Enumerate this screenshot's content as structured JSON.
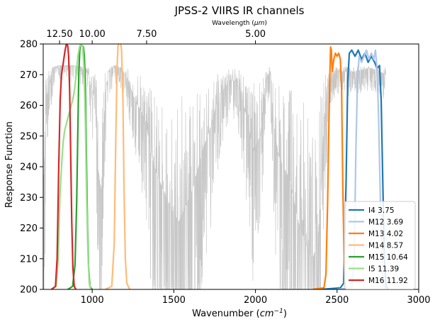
{
  "chart_data": {
    "type": "line",
    "title": "JPSS-2 VIIRS IR channels",
    "xlabel": "Wavenumber (cm⁻¹)",
    "xlabel_parts": {
      "main": "Wavenumber (",
      "unit": "cm",
      "exp": "−1",
      "close": ")"
    },
    "ylabel": "Response Function",
    "top_xlabel": "Wavelength (μm)",
    "top_xlabel_parts": {
      "main": "Wavelength (",
      "unit": "μm",
      "close": ")"
    },
    "xlim": [
      700,
      3000
    ],
    "ylim": [
      200,
      280
    ],
    "x_ticks": [
      1000,
      1500,
      2000,
      2500,
      3000
    ],
    "x_tick_labels": [
      "1000",
      "1500",
      "2000",
      "2500",
      "3000"
    ],
    "y_ticks": [
      200,
      210,
      220,
      230,
      240,
      250,
      260,
      270,
      280
    ],
    "y_tick_labels": [
      "200",
      "210",
      "220",
      "230",
      "240",
      "250",
      "260",
      "270",
      "280"
    ],
    "top_ticks_wavenumber": [
      800,
      1000,
      1333.33,
      2000
    ],
    "top_tick_labels": [
      "12.50",
      "10.00",
      "7.50",
      "5.00"
    ],
    "grid": false,
    "legend_position": "lower-right",
    "background_spectrum": {
      "color": "#c7c7c7",
      "description_points": [
        [
          700,
          232
        ],
        [
          720,
          262
        ],
        [
          760,
          272
        ],
        [
          800,
          273
        ],
        [
          880,
          273
        ],
        [
          940,
          272
        ],
        [
          980,
          270
        ],
        [
          1000,
          262
        ],
        [
          1020,
          266
        ],
        [
          1035,
          240
        ],
        [
          1055,
          232
        ],
        [
          1080,
          262
        ],
        [
          1100,
          271
        ],
        [
          1140,
          273
        ],
        [
          1180,
          272
        ],
        [
          1220,
          268
        ],
        [
          1260,
          262
        ],
        [
          1300,
          258
        ],
        [
          1330,
          254
        ],
        [
          1360,
          244
        ],
        [
          1400,
          237
        ],
        [
          1440,
          232
        ],
        [
          1470,
          228
        ],
        [
          1500,
          225
        ],
        [
          1530,
          222
        ],
        [
          1560,
          226
        ],
        [
          1600,
          230
        ],
        [
          1640,
          238
        ],
        [
          1680,
          246
        ],
        [
          1720,
          252
        ],
        [
          1760,
          260
        ],
        [
          1800,
          265
        ],
        [
          1840,
          268
        ],
        [
          1880,
          268
        ],
        [
          1910,
          264
        ],
        [
          1950,
          255
        ],
        [
          1990,
          245
        ],
        [
          2030,
          250
        ],
        [
          2060,
          268
        ],
        [
          2090,
          271
        ],
        [
          2110,
          255
        ],
        [
          2140,
          244
        ],
        [
          2170,
          240
        ],
        [
          2210,
          236
        ],
        [
          2240,
          228
        ],
        [
          2270,
          220
        ],
        [
          2290,
          218
        ],
        [
          2310,
          215
        ],
        [
          2330,
          212
        ],
        [
          2350,
          210
        ],
        [
          2375,
          214
        ],
        [
          2395,
          224
        ],
        [
          2420,
          255
        ],
        [
          2450,
          268
        ],
        [
          2500,
          271
        ],
        [
          2600,
          271
        ],
        [
          2700,
          272
        ],
        [
          2760,
          271
        ],
        [
          2800,
          270
        ]
      ]
    },
    "series": [
      {
        "name": "I4 3.75",
        "color": "#1f77b4",
        "points": [
          [
            2400,
            200
          ],
          [
            2520,
            200.5
          ],
          [
            2540,
            202
          ],
          [
            2555,
            235
          ],
          [
            2565,
            268
          ],
          [
            2575,
            277
          ],
          [
            2590,
            278
          ],
          [
            2610,
            276
          ],
          [
            2630,
            278
          ],
          [
            2650,
            275
          ],
          [
            2670,
            277
          ],
          [
            2690,
            274
          ],
          [
            2710,
            276
          ],
          [
            2730,
            274
          ],
          [
            2745,
            272
          ],
          [
            2760,
            273
          ],
          [
            2770,
            262
          ],
          [
            2780,
            235
          ],
          [
            2790,
            210
          ],
          [
            2800,
            201
          ],
          [
            2815,
            200
          ]
        ]
      },
      {
        "name": "M12 3.69",
        "color": "#aec7e8",
        "points": [
          [
            2500,
            200
          ],
          [
            2590,
            200.5
          ],
          [
            2605,
            210
          ],
          [
            2615,
            245
          ],
          [
            2625,
            268
          ],
          [
            2635,
            276
          ],
          [
            2650,
            274
          ],
          [
            2665,
            276
          ],
          [
            2680,
            278
          ],
          [
            2695,
            275
          ],
          [
            2710,
            277
          ],
          [
            2725,
            275
          ],
          [
            2735,
            278
          ],
          [
            2745,
            272
          ],
          [
            2755,
            255
          ],
          [
            2765,
            230
          ],
          [
            2775,
            210
          ],
          [
            2785,
            201
          ],
          [
            2800,
            200
          ]
        ]
      },
      {
        "name": "M13 4.02",
        "color": "#ff7f0e",
        "points": [
          [
            2350,
            200
          ],
          [
            2420,
            200.5
          ],
          [
            2432,
            205
          ],
          [
            2442,
            228
          ],
          [
            2450,
            255
          ],
          [
            2456,
            270
          ],
          [
            2460,
            279
          ],
          [
            2465,
            278
          ],
          [
            2470,
            271
          ],
          [
            2480,
            275
          ],
          [
            2490,
            277
          ],
          [
            2500,
            276
          ],
          [
            2510,
            277
          ],
          [
            2520,
            275
          ],
          [
            2528,
            265
          ],
          [
            2535,
            235
          ],
          [
            2543,
            210
          ],
          [
            2550,
            201
          ],
          [
            2560,
            200
          ]
        ]
      },
      {
        "name": "M14 8.57",
        "color": "#ffbb78",
        "points": [
          [
            1080,
            200
          ],
          [
            1120,
            201
          ],
          [
            1135,
            215
          ],
          [
            1145,
            250
          ],
          [
            1152,
            272
          ],
          [
            1158,
            279
          ],
          [
            1165,
            282
          ],
          [
            1172,
            281
          ],
          [
            1180,
            278
          ],
          [
            1188,
            262
          ],
          [
            1195,
            232
          ],
          [
            1203,
            210
          ],
          [
            1212,
            202
          ],
          [
            1230,
            200
          ]
        ]
      },
      {
        "name": "M15 10.64",
        "color": "#2ca02c",
        "points": [
          [
            850,
            200
          ],
          [
            880,
            201
          ],
          [
            895,
            208
          ],
          [
            905,
            228
          ],
          [
            912,
            252
          ],
          [
            918,
            270
          ],
          [
            924,
            278
          ],
          [
            930,
            280
          ],
          [
            938,
            279.5
          ],
          [
            946,
            279
          ],
          [
            952,
            276
          ],
          [
            958,
            266
          ],
          [
            964,
            246
          ],
          [
            971,
            222
          ],
          [
            978,
            207
          ],
          [
            986,
            201
          ],
          [
            1000,
            200
          ]
        ]
      },
      {
        "name": "I5 11.39",
        "color": "#98df8a",
        "points": [
          [
            750,
            200
          ],
          [
            780,
            201
          ],
          [
            792,
            210
          ],
          [
            802,
            230
          ],
          [
            812,
            240
          ],
          [
            822,
            248
          ],
          [
            832,
            252
          ],
          [
            842,
            254
          ],
          [
            852,
            256
          ],
          [
            862,
            258
          ],
          [
            872,
            260
          ],
          [
            882,
            262
          ],
          [
            892,
            265
          ],
          [
            902,
            270
          ],
          [
            912,
            276
          ],
          [
            922,
            279
          ],
          [
            932,
            280
          ],
          [
            942,
            279
          ],
          [
            950,
            272
          ],
          [
            958,
            255
          ],
          [
            966,
            230
          ],
          [
            974,
            212
          ],
          [
            982,
            202
          ],
          [
            992,
            200
          ]
        ]
      },
      {
        "name": "M16 11.92",
        "color": "#d62728",
        "points": [
          [
            750,
            200
          ],
          [
            775,
            201
          ],
          [
            785,
            210
          ],
          [
            795,
            240
          ],
          [
            804,
            262
          ],
          [
            812,
            270
          ],
          [
            818,
            272
          ],
          [
            826,
            275
          ],
          [
            834,
            278
          ],
          [
            842,
            280
          ],
          [
            850,
            279.5
          ],
          [
            856,
            276
          ],
          [
            862,
            265
          ],
          [
            868,
            245
          ],
          [
            875,
            222
          ],
          [
            882,
            207
          ],
          [
            890,
            201
          ],
          [
            900,
            200
          ]
        ]
      }
    ]
  }
}
